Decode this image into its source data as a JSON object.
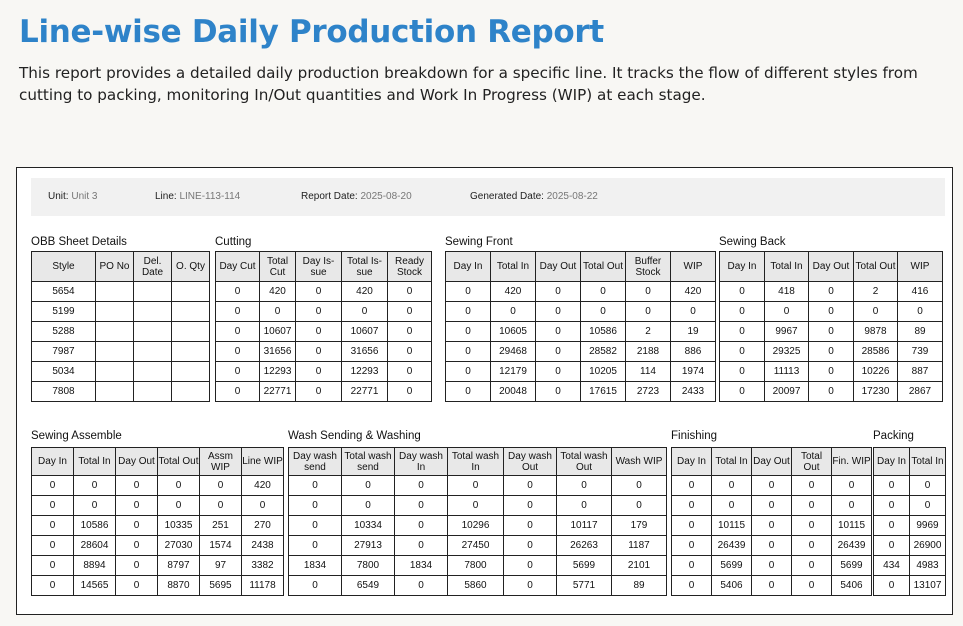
{
  "page": {
    "title": "Line-wise Daily Production Report",
    "description": "This report provides a detailed daily production breakdown for a specific line. It tracks the flow of different styles from cutting to packing, monitoring In/Out quantities and Work In Progress (WIP) at each stage."
  },
  "meta": {
    "unit_label": "Unit:",
    "unit_value": "Unit 3",
    "line_label": "Line:",
    "line_value": "LINE-113-114",
    "report_date_label": "Report Date:",
    "report_date_value": "2025-08-20",
    "generated_date_label": "Generated Date:",
    "generated_date_value": "2025-08-22"
  },
  "sections": [
    {
      "title": "OBB Sheet Details",
      "headers": [
        "Style",
        "PO No",
        "Del. Date",
        "O. Qty"
      ],
      "rows": [
        [
          "5654",
          "",
          "",
          ""
        ],
        [
          "5199",
          "",
          "",
          ""
        ],
        [
          "5288",
          "",
          "",
          ""
        ],
        [
          "7987",
          "",
          "",
          ""
        ],
        [
          "5034",
          "",
          "",
          ""
        ],
        [
          "7808",
          "",
          "",
          ""
        ]
      ]
    },
    {
      "title": "Cutting",
      "headers": [
        "Day Cut",
        "Total Cut",
        "Day Is-sue",
        "Total Is-sue",
        "Ready Stock"
      ],
      "rows": [
        [
          "0",
          "420",
          "0",
          "420",
          "0"
        ],
        [
          "0",
          "0",
          "0",
          "0",
          "0"
        ],
        [
          "0",
          "10607",
          "0",
          "10607",
          "0"
        ],
        [
          "0",
          "31656",
          "0",
          "31656",
          "0"
        ],
        [
          "0",
          "12293",
          "0",
          "12293",
          "0"
        ],
        [
          "0",
          "22771",
          "0",
          "22771",
          "0"
        ]
      ]
    },
    {
      "title": "Sewing Front",
      "headers": [
        "Day In",
        "Total In",
        "Day Out",
        "Total Out",
        "Buffer Stock",
        "WIP"
      ],
      "rows": [
        [
          "0",
          "420",
          "0",
          "0",
          "0",
          "420"
        ],
        [
          "0",
          "0",
          "0",
          "0",
          "0",
          "0"
        ],
        [
          "0",
          "10605",
          "0",
          "10586",
          "2",
          "19"
        ],
        [
          "0",
          "29468",
          "0",
          "28582",
          "2188",
          "886"
        ],
        [
          "0",
          "12179",
          "0",
          "10205",
          "114",
          "1974"
        ],
        [
          "0",
          "20048",
          "0",
          "17615",
          "2723",
          "2433"
        ]
      ]
    },
    {
      "title": "Sewing Back",
      "headers": [
        "Day In",
        "Total In",
        "Day Out",
        "Total Out",
        "WIP"
      ],
      "rows": [
        [
          "0",
          "418",
          "0",
          "2",
          "416"
        ],
        [
          "0",
          "0",
          "0",
          "0",
          "0"
        ],
        [
          "0",
          "9967",
          "0",
          "9878",
          "89"
        ],
        [
          "0",
          "29325",
          "0",
          "28586",
          "739"
        ],
        [
          "0",
          "11113",
          "0",
          "10226",
          "887"
        ],
        [
          "0",
          "20097",
          "0",
          "17230",
          "2867"
        ]
      ]
    },
    {
      "title": "Sewing Assemble",
      "headers": [
        "Day In",
        "Total In",
        "Day Out",
        "Total Out",
        "Assm WIP",
        "Line WIP"
      ],
      "rows": [
        [
          "0",
          "0",
          "0",
          "0",
          "0",
          "420"
        ],
        [
          "0",
          "0",
          "0",
          "0",
          "0",
          "0"
        ],
        [
          "0",
          "10586",
          "0",
          "10335",
          "251",
          "270"
        ],
        [
          "0",
          "28604",
          "0",
          "27030",
          "1574",
          "2438"
        ],
        [
          "0",
          "8894",
          "0",
          "8797",
          "97",
          "3382"
        ],
        [
          "0",
          "14565",
          "0",
          "8870",
          "5695",
          "11178"
        ]
      ]
    },
    {
      "title": "Wash Sending & Washing",
      "headers": [
        "Day wash send",
        "Total wash send",
        "Day wash In",
        "Total wash In",
        "Day wash Out",
        "Total wash Out",
        "Wash WIP"
      ],
      "rows": [
        [
          "0",
          "0",
          "0",
          "0",
          "0",
          "0",
          "0"
        ],
        [
          "0",
          "0",
          "0",
          "0",
          "0",
          "0",
          "0"
        ],
        [
          "0",
          "10334",
          "0",
          "10296",
          "0",
          "10117",
          "179"
        ],
        [
          "0",
          "27913",
          "0",
          "27450",
          "0",
          "26263",
          "1187"
        ],
        [
          "1834",
          "7800",
          "1834",
          "7800",
          "0",
          "5699",
          "2101"
        ],
        [
          "0",
          "6549",
          "0",
          "5860",
          "0",
          "5771",
          "89"
        ]
      ]
    },
    {
      "title": "Finishing",
      "headers": [
        "Day In",
        "Total In",
        "Day Out",
        "Total Out",
        "Fin. WIP"
      ],
      "rows": [
        [
          "0",
          "0",
          "0",
          "0",
          "0"
        ],
        [
          "0",
          "0",
          "0",
          "0",
          "0"
        ],
        [
          "0",
          "10115",
          "0",
          "0",
          "10115"
        ],
        [
          "0",
          "26439",
          "0",
          "0",
          "26439"
        ],
        [
          "0",
          "5699",
          "0",
          "0",
          "5699"
        ],
        [
          "0",
          "5406",
          "0",
          "0",
          "5406"
        ]
      ]
    },
    {
      "title": "Packing",
      "headers": [
        "Day In",
        "Total In"
      ],
      "rows": [
        [
          "0",
          "0"
        ],
        [
          "0",
          "0"
        ],
        [
          "0",
          "9969"
        ],
        [
          "0",
          "26900"
        ],
        [
          "434",
          "4983"
        ],
        [
          "0",
          "13107"
        ]
      ]
    }
  ]
}
